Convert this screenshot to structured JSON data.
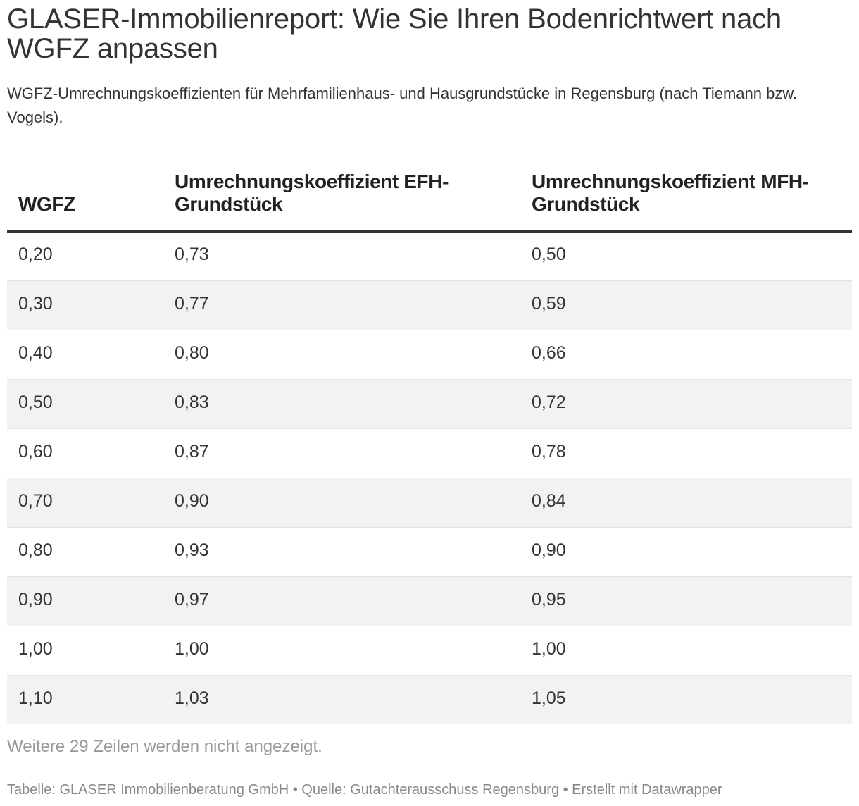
{
  "chart_data": {
    "type": "table",
    "title": "GLASER-Immobilienreport: Wie Sie Ihren Bodenrichtwert nach WGFZ anpassen",
    "subtitle": "WGFZ-Umrechnungskoeffizienten für Mehrfamilienhaus- und Hausgrundstücke in Regensburg (nach Tiemann bzw. Vogels).",
    "columns": [
      "WGFZ",
      "Umrechnungskoeffizient EFH-Grundstück",
      "Umrechnungskoeffizient MFH-Grundstück"
    ],
    "rows": [
      [
        "0,20",
        "0,73",
        "0,50"
      ],
      [
        "0,30",
        "0,77",
        "0,59"
      ],
      [
        "0,40",
        "0,80",
        "0,66"
      ],
      [
        "0,50",
        "0,83",
        "0,72"
      ],
      [
        "0,60",
        "0,87",
        "0,78"
      ],
      [
        "0,70",
        "0,90",
        "0,84"
      ],
      [
        "0,80",
        "0,93",
        "0,90"
      ],
      [
        "0,90",
        "0,97",
        "0,95"
      ],
      [
        "1,00",
        "1,00",
        "1,00"
      ],
      [
        "1,10",
        "1,03",
        "1,05"
      ]
    ],
    "more_rows_note": "Weitere 29 Zeilen werden nicht angezeigt.",
    "footer": "Tabelle: GLASER Immobilienberatung GmbH • Quelle: Gutachterausschuss Regensburg • Erstellt mit Datawrapper"
  },
  "colors": {
    "text": "#333333",
    "header_rule": "#333333",
    "stripe": "#f2f2f2",
    "muted": "#999999"
  }
}
